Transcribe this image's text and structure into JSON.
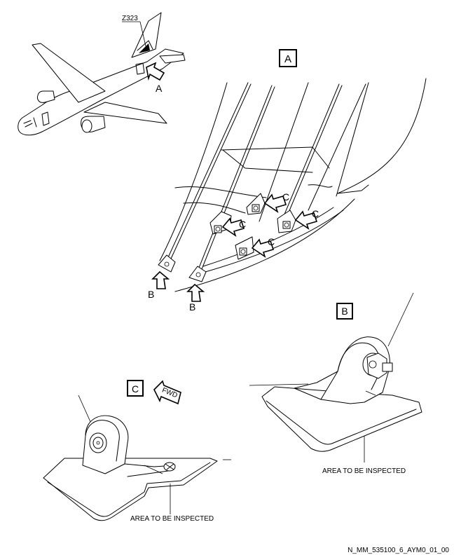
{
  "zone_label": "Z323",
  "views": {
    "A": "A",
    "B": "B",
    "C": "C"
  },
  "arrow_labels": {
    "A": "A",
    "B": "B",
    "C": "C"
  },
  "fwd_label": "FWD",
  "inspect_label": "AREA TO BE INSPECTED",
  "figure_id": "N_MM_535100_6_AYM0_01_00"
}
